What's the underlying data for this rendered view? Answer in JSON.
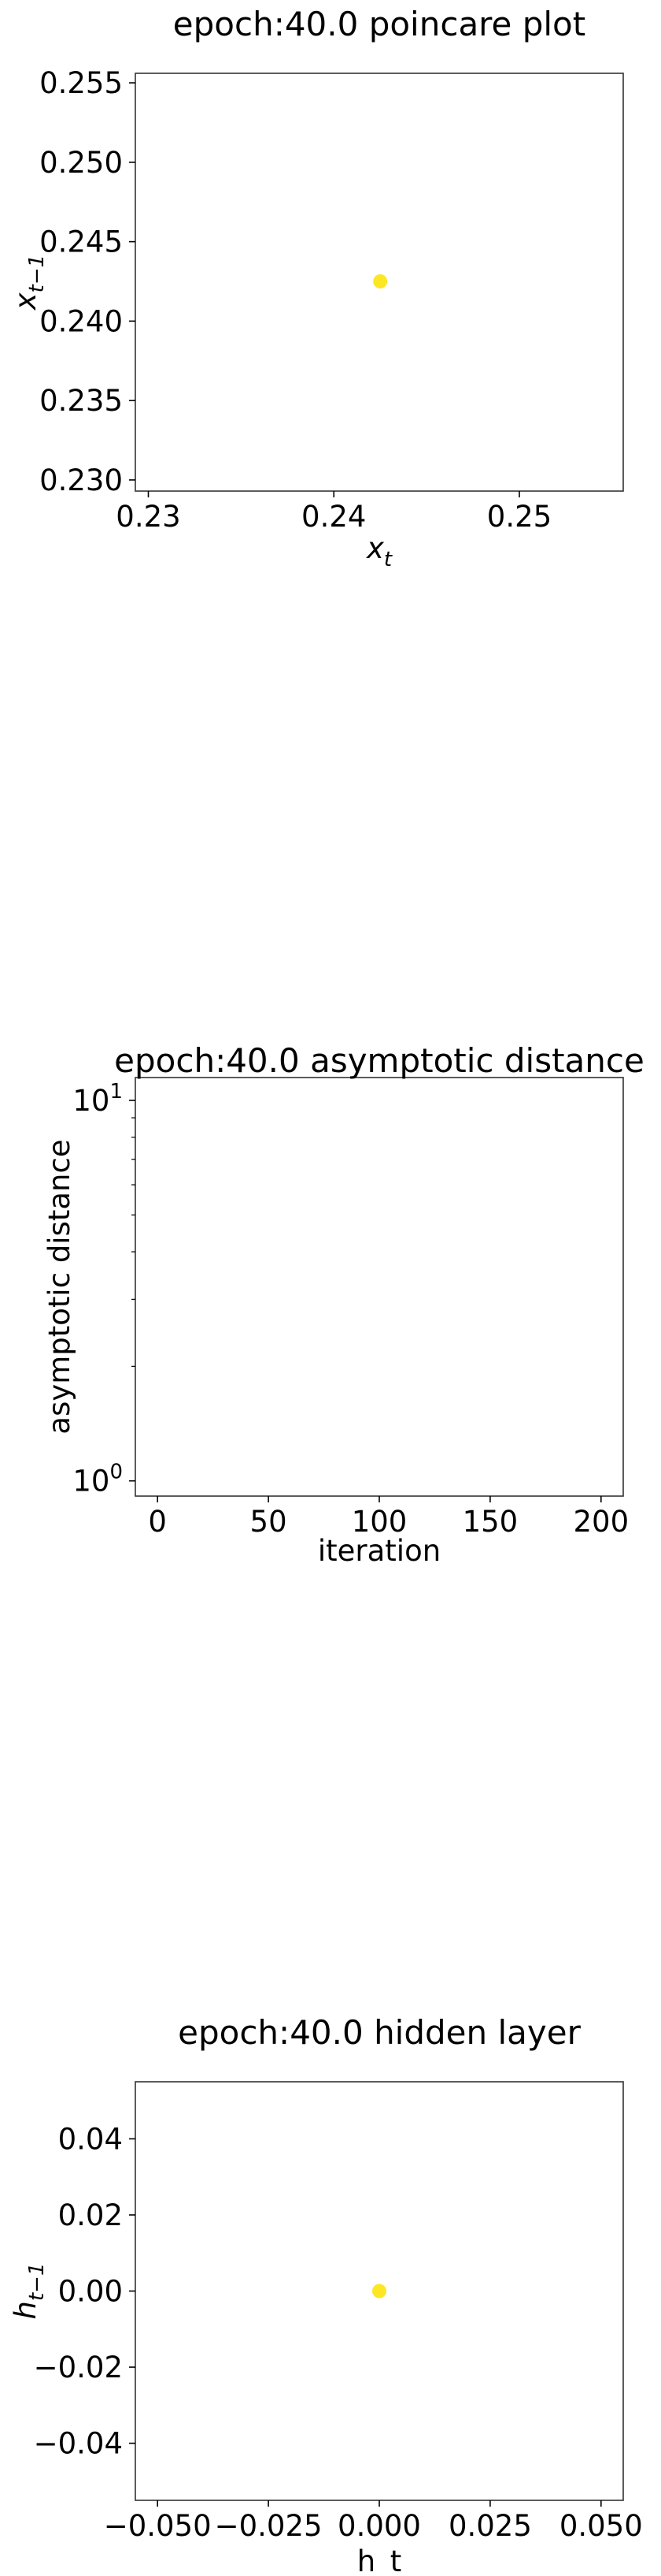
{
  "chart_data": [
    {
      "type": "scatter",
      "title": "epoch:40.0 poincare plot",
      "xlabel": "x_t",
      "ylabel": "x_{t-1}",
      "xlim": [
        0.2293,
        0.2556
      ],
      "ylim": [
        0.2293,
        0.2556
      ],
      "xticks": [
        "0.23",
        "0.24",
        "0.25"
      ],
      "yticks": [
        "0.230",
        "0.235",
        "0.240",
        "0.245",
        "0.250",
        "0.255"
      ],
      "grid": false,
      "points": [
        {
          "x": 0.2425,
          "y": 0.2425
        }
      ],
      "marker_color": "#fde725"
    },
    {
      "type": "line",
      "title": "epoch:40.0 asymptotic distance",
      "xlabel": "iteration",
      "ylabel": "asymptotic distance",
      "xlim": [
        -10,
        210
      ],
      "yscale": "log",
      "xticks": [
        "0",
        "50",
        "100",
        "150",
        "200"
      ],
      "yticks": [
        "10^0",
        "10^1"
      ],
      "grid": false,
      "series": []
    },
    {
      "type": "scatter",
      "title": "epoch:40.0 hidden layer",
      "xlabel": "h_t",
      "ylabel": "h_{t-1}",
      "xlim": [
        -0.055,
        0.055
      ],
      "ylim": [
        -0.055,
        0.055
      ],
      "xticks": [
        "−0.050",
        "−0.025",
        "0.000",
        "0.025",
        "0.050"
      ],
      "yticks": [
        "−0.04",
        "−0.02",
        "0.00",
        "0.02",
        "0.04"
      ],
      "grid": false,
      "points": [
        {
          "x": 0.0,
          "y": 0.0
        }
      ],
      "marker_color": "#fde725"
    }
  ]
}
